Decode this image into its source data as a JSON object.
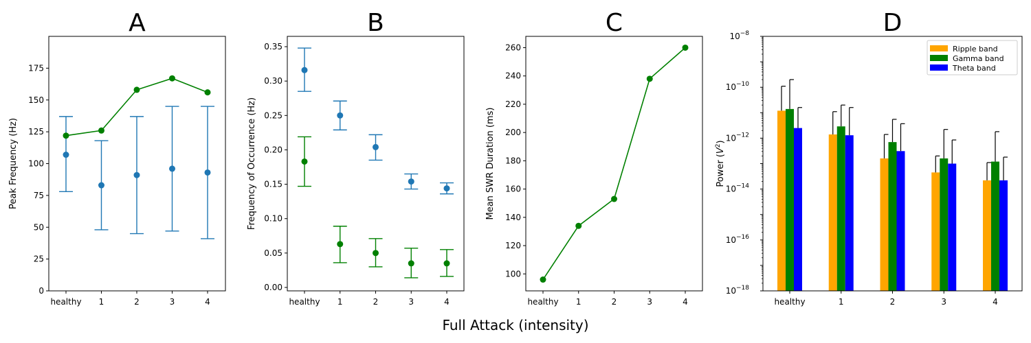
{
  "figure": {
    "xlabel": "Full Attack (intensity)",
    "categories": [
      "healthy",
      "1",
      "2",
      "3",
      "4"
    ]
  },
  "chart_data": [
    {
      "id": "A",
      "type": "line",
      "title": "A",
      "ylabel": "Peak Frequency (Hz)",
      "ylim": [
        0,
        200
      ],
      "yticks": [
        0,
        25,
        50,
        75,
        100,
        125,
        150,
        175
      ],
      "categories": [
        "healthy",
        "1",
        "2",
        "3",
        "4"
      ],
      "series": [
        {
          "color": "#1f77b4",
          "style": "errorbar",
          "values": [
            107,
            83,
            91,
            96,
            93
          ],
          "err_low": [
            78,
            48,
            45,
            47,
            41
          ],
          "err_high": [
            137,
            118,
            137,
            145,
            145
          ]
        },
        {
          "color": "#008000",
          "style": "line",
          "values": [
            122,
            126,
            158,
            167,
            156
          ]
        }
      ]
    },
    {
      "id": "B",
      "type": "scatter",
      "title": "B",
      "ylabel": "Frequency of Occurrence (Hz)",
      "ylim": [
        -0.005,
        0.365
      ],
      "yticks": [
        0.0,
        0.05,
        0.1,
        0.15,
        0.2,
        0.25,
        0.3,
        0.35
      ],
      "ytick_decimals": 2,
      "categories": [
        "healthy",
        "1",
        "2",
        "3",
        "4"
      ],
      "series": [
        {
          "color": "#1f77b4",
          "style": "errorbar",
          "values": [
            0.316,
            0.25,
            0.204,
            0.154,
            0.144
          ],
          "err_low": [
            0.285,
            0.229,
            0.185,
            0.143,
            0.136
          ],
          "err_high": [
            0.348,
            0.271,
            0.222,
            0.165,
            0.152
          ]
        },
        {
          "color": "#008000",
          "style": "errorbar",
          "values": [
            0.183,
            0.063,
            0.05,
            0.035,
            0.035
          ],
          "err_low": [
            0.147,
            0.036,
            0.03,
            0.014,
            0.016
          ],
          "err_high": [
            0.219,
            0.089,
            0.071,
            0.057,
            0.055
          ]
        }
      ]
    },
    {
      "id": "C",
      "type": "line",
      "title": "C",
      "ylabel": "Mean SWR Duration (ms)",
      "ylim": [
        88,
        268
      ],
      "yticks": [
        100,
        120,
        140,
        160,
        180,
        200,
        220,
        240,
        260
      ],
      "categories": [
        "healthy",
        "1",
        "2",
        "3",
        "4"
      ],
      "series": [
        {
          "color": "#008000",
          "style": "line",
          "values": [
            96,
            134,
            153,
            238,
            260
          ]
        }
      ]
    },
    {
      "id": "D",
      "type": "bar",
      "title": "D",
      "ylabel": "Power (V²)",
      "yscale": "log",
      "ylim": [
        1e-18,
        1e-08
      ],
      "yticks_exp": [
        -18,
        -16,
        -14,
        -12,
        -10,
        -8
      ],
      "legend_position": "top-right",
      "categories": [
        "healthy",
        "1",
        "2",
        "3",
        "4"
      ],
      "series": [
        {
          "name": "Ripple band",
          "color": "#ffa500",
          "values": [
            1.2e-11,
            1.4e-12,
            1.6e-13,
            4.5e-14,
            2.2e-14
          ],
          "err_high": [
            1.1e-10,
            1.1e-11,
            1.4e-12,
            2e-13,
            1.1e-13
          ]
        },
        {
          "name": "Gamma band",
          "color": "#008000",
          "values": [
            1.4e-11,
            2.9e-12,
            7e-13,
            1.6e-13,
            1.2e-13
          ],
          "err_high": [
            2e-10,
            2e-11,
            5.5e-12,
            2.2e-12,
            1.8e-12
          ]
        },
        {
          "name": "Theta band",
          "color": "#0000ff",
          "values": [
            2.5e-12,
            1.3e-12,
            3.1e-13,
            1e-13,
            2.2e-14
          ],
          "err_high": [
            1.6e-11,
            1.6e-11,
            3.7e-12,
            8.5e-13,
            1.8e-13
          ]
        }
      ]
    }
  ]
}
